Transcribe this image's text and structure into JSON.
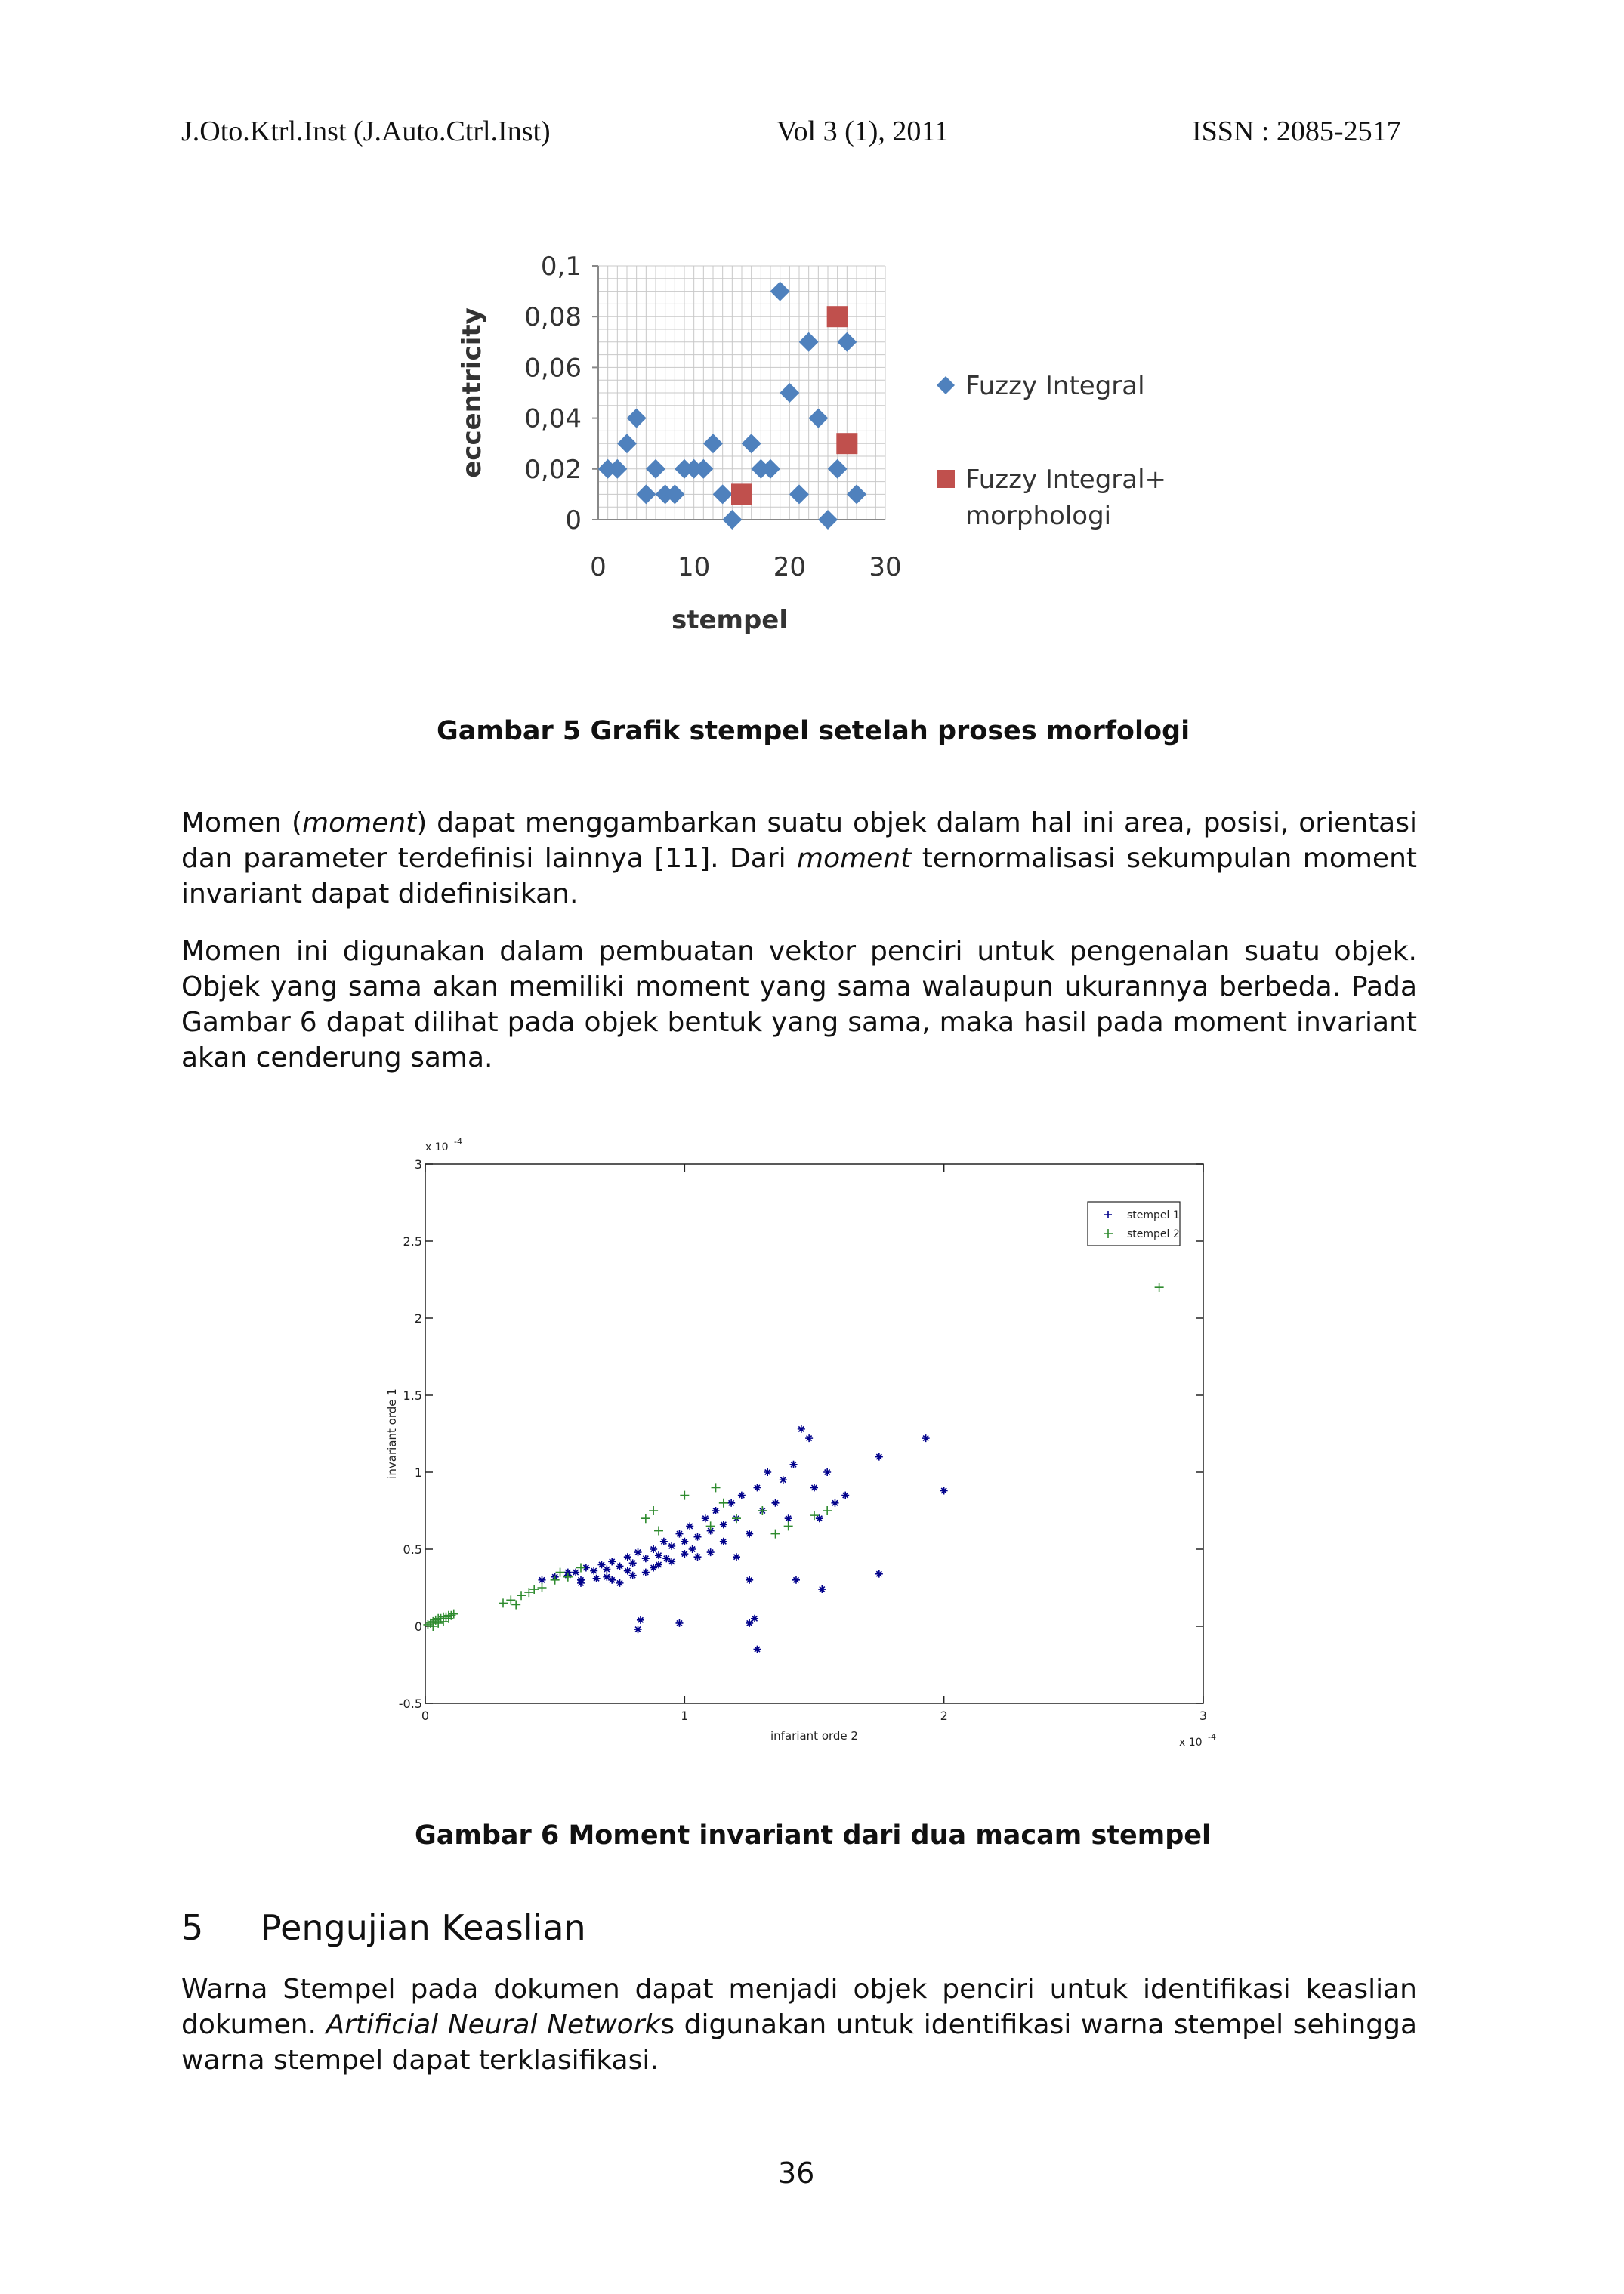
{
  "header": {
    "journal": "J.Oto.Ktrl.Inst (J.Auto.Ctrl.Inst)",
    "volume": "Vol 3 (1), 2011",
    "issn": "ISSN : 2085-2517"
  },
  "figure5": {
    "caption": "Gambar 5 Grafik stempel setelah proses morfologi"
  },
  "figure6": {
    "caption": "Gambar 6 Moment invariant dari dua macam stempel"
  },
  "chart_data": [
    {
      "type": "scatter",
      "xlabel": "stempel",
      "ylabel": "eccentricity",
      "xlim": [
        0,
        30
      ],
      "ylim": [
        0,
        0.1
      ],
      "x_ticks": [
        "0",
        "10",
        "20",
        "30"
      ],
      "y_ticks": [
        "0",
        "0,02",
        "0,04",
        "0,06",
        "0,08",
        "0,1"
      ],
      "grid": true,
      "legend_position": "right",
      "series": [
        {
          "name": "Fuzzy Integral",
          "color": "#4F81BD",
          "marker": "diamond",
          "points": [
            [
              1,
              0.02
            ],
            [
              2,
              0.02
            ],
            [
              3,
              0.03
            ],
            [
              4,
              0.04
            ],
            [
              5,
              0.01
            ],
            [
              6,
              0.02
            ],
            [
              7,
              0.01
            ],
            [
              8,
              0.01
            ],
            [
              9,
              0.02
            ],
            [
              10,
              0.02
            ],
            [
              11,
              0.02
            ],
            [
              12,
              0.03
            ],
            [
              13,
              0.01
            ],
            [
              14,
              0
            ],
            [
              16,
              0.03
            ],
            [
              17,
              0.02
            ],
            [
              18,
              0.02
            ],
            [
              19,
              0.09
            ],
            [
              20,
              0.05
            ],
            [
              21,
              0.01
            ],
            [
              22,
              0.07
            ],
            [
              23,
              0.04
            ],
            [
              24,
              0
            ],
            [
              25,
              0.02
            ],
            [
              26,
              0.07
            ],
            [
              27,
              0.01
            ]
          ]
        },
        {
          "name": "Fuzzy Integral+\nmorphologi",
          "name_lines": [
            "Fuzzy Integral+",
            "morphologi"
          ],
          "color": "#C0504D",
          "marker": "square",
          "points": [
            [
              15,
              0.01
            ],
            [
              25,
              0.08
            ],
            [
              26,
              0.03
            ]
          ]
        }
      ]
    },
    {
      "type": "scatter",
      "xlabel": "infariant orde 2",
      "ylabel": "invariant orde 1",
      "x_multiplier": "x 10",
      "x_multiplier_exp": "-4",
      "y_multiplier": "x 10",
      "y_multiplier_exp": "-4",
      "xlim": [
        0,
        3
      ],
      "ylim": [
        -0.5,
        3
      ],
      "x_ticks": [
        "0",
        "1",
        "2",
        "3"
      ],
      "y_ticks": [
        "-0.5",
        "0",
        "0.5",
        "1",
        "1.5",
        "2",
        "2.5",
        "3"
      ],
      "grid": false,
      "legend_position": "top-right",
      "series": [
        {
          "name": "stempel 1",
          "color": "#00008B",
          "marker": "star",
          "points": [
            [
              0.45,
              0.3
            ],
            [
              0.5,
              0.32
            ],
            [
              0.55,
              0.33
            ],
            [
              0.58,
              0.35
            ],
            [
              0.6,
              0.3
            ],
            [
              0.62,
              0.38
            ],
            [
              0.65,
              0.36
            ],
            [
              0.68,
              0.4
            ],
            [
              0.7,
              0.37
            ],
            [
              0.72,
              0.42
            ],
            [
              0.75,
              0.39
            ],
            [
              0.78,
              0.45
            ],
            [
              0.8,
              0.41
            ],
            [
              0.82,
              0.48
            ],
            [
              0.85,
              0.44
            ],
            [
              0.88,
              0.5
            ],
            [
              0.9,
              0.46
            ],
            [
              0.92,
              0.55
            ],
            [
              0.95,
              0.52
            ],
            [
              0.98,
              0.6
            ],
            [
              1.0,
              0.55
            ],
            [
              1.02,
              0.65
            ],
            [
              1.05,
              0.58
            ],
            [
              1.08,
              0.7
            ],
            [
              1.1,
              0.62
            ],
            [
              1.12,
              0.75
            ],
            [
              1.15,
              0.66
            ],
            [
              1.18,
              0.8
            ],
            [
              1.2,
              0.7
            ],
            [
              1.22,
              0.85
            ],
            [
              1.25,
              0.6
            ],
            [
              1.28,
              0.9
            ],
            [
              1.3,
              0.75
            ],
            [
              1.32,
              1.0
            ],
            [
              1.35,
              0.8
            ],
            [
              1.38,
              0.95
            ],
            [
              1.4,
              0.7
            ],
            [
              1.42,
              1.05
            ],
            [
              1.45,
              1.28
            ],
            [
              1.48,
              1.22
            ],
            [
              1.5,
              0.9
            ],
            [
              1.52,
              0.7
            ],
            [
              1.55,
              1.0
            ],
            [
              1.58,
              0.8
            ],
            [
              1.62,
              0.85
            ],
            [
              1.75,
              1.1
            ],
            [
              1.93,
              1.22
            ],
            [
              2.0,
              0.88
            ],
            [
              1.75,
              0.34
            ],
            [
              1.53,
              0.24
            ],
            [
              1.43,
              0.3
            ],
            [
              1.25,
              0.3
            ],
            [
              1.27,
              0.05
            ],
            [
              1.28,
              -0.15
            ],
            [
              1.25,
              0.02
            ],
            [
              0.98,
              0.02
            ],
            [
              0.83,
              0.04
            ],
            [
              0.82,
              -0.02
            ],
            [
              0.55,
              0.35
            ],
            [
              0.6,
              0.28
            ],
            [
              0.7,
              0.32
            ],
            [
              0.75,
              0.28
            ],
            [
              0.85,
              0.35
            ],
            [
              0.9,
              0.4
            ],
            [
              0.95,
              0.42
            ],
            [
              1.05,
              0.45
            ],
            [
              1.1,
              0.48
            ],
            [
              1.15,
              0.55
            ],
            [
              1.2,
              0.45
            ],
            [
              0.72,
              0.3
            ],
            [
              0.8,
              0.33
            ],
            [
              0.66,
              0.31
            ],
            [
              0.78,
              0.36
            ],
            [
              0.88,
              0.38
            ],
            [
              0.93,
              0.44
            ],
            [
              1.0,
              0.47
            ],
            [
              1.03,
              0.5
            ]
          ]
        },
        {
          "name": "stempel 2",
          "color": "#2E8B2E",
          "marker": "plus",
          "points": [
            [
              0.01,
              0.01
            ],
            [
              0.02,
              0.02
            ],
            [
              0.03,
              0.03
            ],
            [
              0.04,
              0.04
            ],
            [
              0.05,
              0.05
            ],
            [
              0.06,
              0.05
            ],
            [
              0.07,
              0.06
            ],
            [
              0.08,
              0.06
            ],
            [
              0.09,
              0.07
            ],
            [
              0.1,
              0.07
            ],
            [
              0.11,
              0.08
            ],
            [
              0.03,
              0.0
            ],
            [
              0.05,
              0.02
            ],
            [
              0.07,
              0.03
            ],
            [
              0.09,
              0.05
            ],
            [
              0.3,
              0.15
            ],
            [
              0.33,
              0.17
            ],
            [
              0.35,
              0.14
            ],
            [
              0.37,
              0.2
            ],
            [
              0.4,
              0.22
            ],
            [
              0.42,
              0.24
            ],
            [
              0.45,
              0.25
            ],
            [
              0.5,
              0.3
            ],
            [
              0.52,
              0.35
            ],
            [
              0.55,
              0.32
            ],
            [
              0.6,
              0.38
            ],
            [
              0.85,
              0.7
            ],
            [
              0.88,
              0.75
            ],
            [
              0.9,
              0.62
            ],
            [
              1.0,
              0.85
            ],
            [
              1.1,
              0.65
            ],
            [
              1.12,
              0.9
            ],
            [
              1.15,
              0.8
            ],
            [
              1.2,
              0.7
            ],
            [
              1.3,
              0.75
            ],
            [
              1.35,
              0.6
            ],
            [
              1.4,
              0.65
            ],
            [
              1.5,
              0.72
            ],
            [
              1.55,
              0.75
            ],
            [
              2.83,
              2.2
            ]
          ]
        }
      ]
    }
  ],
  "paragraphs": {
    "p1": [
      {
        "t": "Momen ("
      },
      {
        "t": "moment",
        "i": true
      },
      {
        "t": ") dapat menggambarkan suatu objek dalam hal ini area, posisi, orientasi dan parameter terdefinisi lainnya [11]. Dari "
      },
      {
        "t": "moment",
        "i": true
      },
      {
        "t": " ternormalisasi sekumpulan moment invariant dapat didefinisikan."
      }
    ],
    "p2": [
      {
        "t": "Momen ini digunakan dalam pembuatan vektor penciri untuk pengenalan suatu objek. Objek yang sama akan memiliki moment yang sama walaupun ukurannya berbeda. Pada Gambar 6 dapat dilihat pada objek bentuk yang sama, maka hasil pada moment invariant akan cenderung sama."
      }
    ],
    "p3": [
      {
        "t": "Warna Stempel pada dokumen dapat menjadi objek penciri untuk identifikasi keaslian dokumen. "
      },
      {
        "t": "Artificial Neural Network",
        "i": true
      },
      {
        "t": "s digunakan untuk identifikasi warna stempel sehingga warna stempel dapat terklasifikasi."
      }
    ]
  },
  "section": {
    "number": "5",
    "title": "Pengujian Keaslian"
  },
  "page_number": "36"
}
